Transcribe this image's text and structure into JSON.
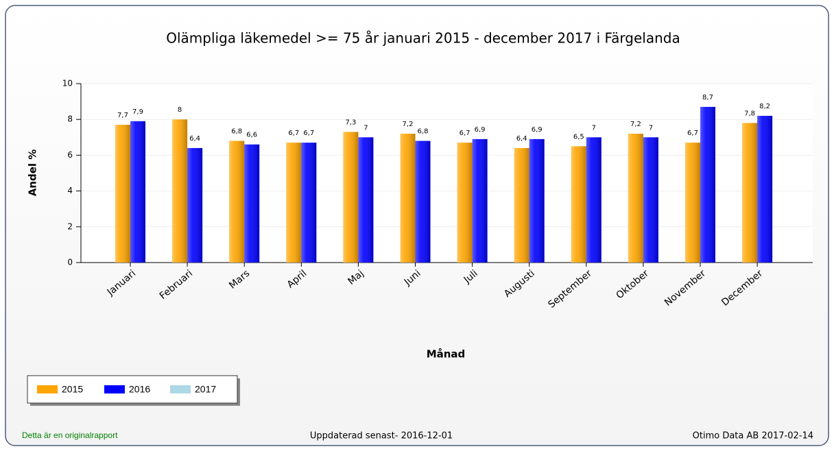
{
  "chart_data": {
    "type": "bar",
    "title": "Olämpliga läkemedel >= 75 år januari 2015 - december 2017 i  Färgelanda",
    "x_label": "Månad",
    "y_label": "Andel %",
    "categories": [
      "Januari",
      "Februari",
      "Mars",
      "April",
      "Maj",
      "Juni",
      "Juli",
      "Augusti",
      "September",
      "Oktober",
      "November",
      "December"
    ],
    "series": [
      {
        "name": "2015",
        "color": "#FFA500",
        "values": [
          7.7,
          8,
          6.8,
          6.7,
          7.3,
          7.2,
          6.7,
          6.4,
          6.5,
          7.2,
          6.7,
          7.8
        ],
        "value_labels": [
          "7,7",
          "8",
          "6,8",
          "6,7",
          "7,3",
          "7,2",
          "6,7",
          "6,4",
          "6,5",
          "7,2",
          "6,7",
          "7,8"
        ]
      },
      {
        "name": "2016",
        "color": "#0000FF",
        "values": [
          7.9,
          6.4,
          6.6,
          6.7,
          7,
          6.8,
          6.9,
          6.9,
          7,
          7,
          8.7,
          8.2
        ],
        "value_labels": [
          "7,9",
          "6,4",
          "6,6",
          "6,7",
          "7",
          "6,8",
          "6,9",
          "6,9",
          "7",
          "7",
          "8,7",
          "8,2"
        ]
      },
      {
        "name": "2017",
        "color": "#ADD8E6",
        "values": [
          null,
          null,
          null,
          null,
          null,
          null,
          null,
          null,
          null,
          null,
          null,
          null
        ]
      }
    ],
    "ylim": [
      0,
      10
    ],
    "yticks": [
      0,
      2,
      4,
      6,
      8,
      10
    ],
    "grid": true,
    "legend": "bottom-left"
  },
  "footer": {
    "left": "Detta är en originalrapport",
    "center": "Uppdaterad senast- 2016-12-01",
    "right": "Otimo Data AB 2017-02-14"
  }
}
